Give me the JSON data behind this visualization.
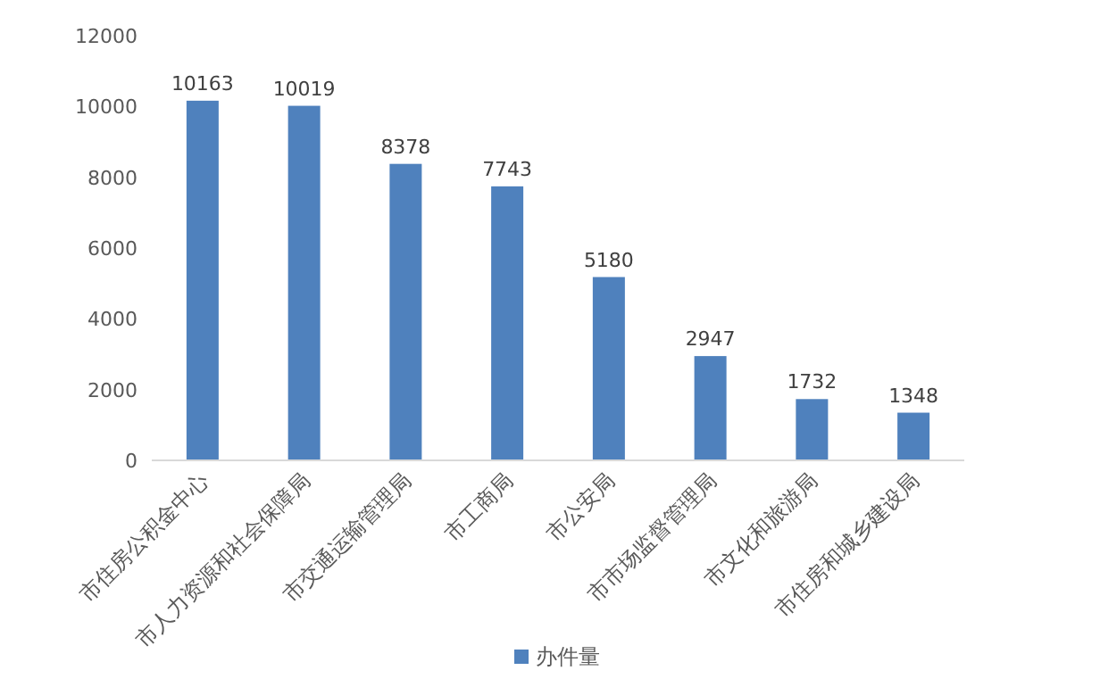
{
  "chart_data": {
    "type": "bar",
    "categories": [
      "市住房公积金中心",
      "市人力资源和社会保障局",
      "市交通运输管理局",
      "市工商局",
      "市公安局",
      "市市场监督管理局",
      "市文化和旅游局",
      "市住房和城乡建设局"
    ],
    "series": [
      {
        "name": "办件量",
        "color": "#4f81bd",
        "values": [
          10163,
          10019,
          8378,
          7743,
          5180,
          2947,
          1732,
          1348
        ]
      }
    ],
    "ylim": [
      0,
      12000
    ],
    "yticks": [
      0,
      2000,
      4000,
      6000,
      8000,
      10000,
      12000
    ],
    "data_labels": true,
    "legend": "bottom"
  }
}
